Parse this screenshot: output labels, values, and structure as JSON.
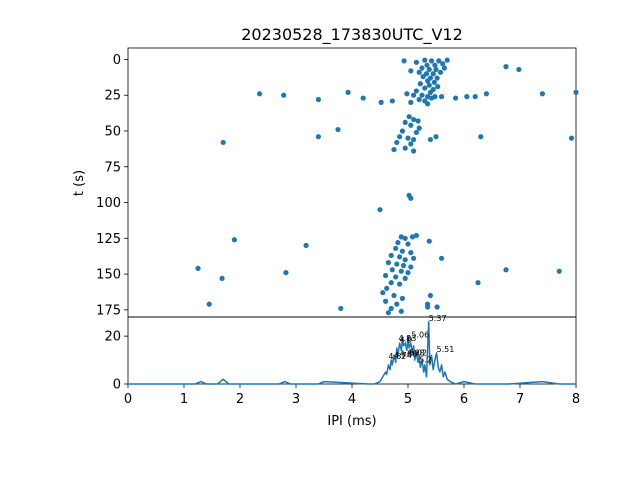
{
  "chart_data": [
    {
      "type": "scatter",
      "title": "20230528_173830UTC_V12",
      "xlabel": "",
      "ylabel": "t (s)",
      "xlim": [
        0,
        8
      ],
      "ylim": [
        180,
        -8
      ],
      "y_inverted": true,
      "yticks": [
        0,
        25,
        50,
        75,
        100,
        125,
        150,
        175
      ],
      "color": "#1f77b4",
      "points": [
        [
          4.93,
          1
        ],
        [
          5.15,
          2
        ],
        [
          5.3,
          0.5
        ],
        [
          5.42,
          1
        ],
        [
          5.55,
          1
        ],
        [
          5.7,
          0.5
        ],
        [
          5.34,
          4
        ],
        [
          5.48,
          4
        ],
        [
          5.62,
          3
        ],
        [
          5.25,
          6
        ],
        [
          5.38,
          7
        ],
        [
          5.5,
          7
        ],
        [
          5.65,
          6
        ],
        [
          5.05,
          8
        ],
        [
          5.2,
          9
        ],
        [
          5.33,
          10
        ],
        [
          5.45,
          10
        ],
        [
          5.58,
          9
        ],
        [
          5.27,
          12
        ],
        [
          5.4,
          13
        ],
        [
          5.52,
          13
        ],
        [
          5.35,
          15
        ],
        [
          5.47,
          16
        ],
        [
          5.22,
          17
        ],
        [
          5.38,
          18
        ],
        [
          5.53,
          19
        ],
        [
          5.3,
          20
        ],
        [
          5.45,
          21
        ],
        [
          5.15,
          22
        ],
        [
          5.4,
          23
        ],
        [
          5.25,
          25
        ],
        [
          5.35,
          26
        ],
        [
          5.1,
          25
        ],
        [
          5.2,
          28
        ],
        [
          5.3,
          29
        ],
        [
          5.05,
          30
        ],
        [
          5.35,
          31
        ],
        [
          5.42,
          27
        ],
        [
          5.6,
          26
        ],
        [
          6.75,
          5
        ],
        [
          6.98,
          7
        ],
        [
          2.35,
          24
        ],
        [
          2.78,
          25
        ],
        [
          3.4,
          28
        ],
        [
          3.93,
          23
        ],
        [
          4.2,
          27
        ],
        [
          4.52,
          30
        ],
        [
          4.72,
          29
        ],
        [
          4.98,
          24
        ],
        [
          5.48,
          26
        ],
        [
          5.85,
          27
        ],
        [
          6.05,
          26
        ],
        [
          6.2,
          26
        ],
        [
          6.4,
          24
        ],
        [
          7.4,
          24
        ],
        [
          8.0,
          23
        ],
        [
          5.02,
          40
        ],
        [
          5.1,
          42
        ],
        [
          4.95,
          44
        ],
        [
          5.18,
          43
        ],
        [
          5.05,
          46
        ],
        [
          5.2,
          48
        ],
        [
          4.9,
          50
        ],
        [
          5.15,
          51
        ],
        [
          4.85,
          54
        ],
        [
          5.0,
          55
        ],
        [
          5.1,
          56
        ],
        [
          4.8,
          58
        ],
        [
          5.05,
          59
        ],
        [
          4.95,
          62
        ],
        [
          5.1,
          64
        ],
        [
          5.5,
          54
        ],
        [
          5.4,
          56
        ],
        [
          4.75,
          63
        ],
        [
          3.4,
          54
        ],
        [
          3.75,
          49
        ],
        [
          1.7,
          58
        ],
        [
          6.3,
          54
        ],
        [
          7.92,
          55
        ],
        [
          5.02,
          95
        ],
        [
          5.05,
          97
        ],
        [
          4.5,
          105
        ],
        [
          4.88,
          124
        ],
        [
          4.95,
          125
        ],
        [
          5.08,
          124
        ],
        [
          5.15,
          123
        ],
        [
          4.82,
          128
        ],
        [
          5.0,
          129
        ],
        [
          4.78,
          132
        ],
        [
          4.9,
          134
        ],
        [
          5.05,
          135
        ],
        [
          4.7,
          137
        ],
        [
          4.85,
          138
        ],
        [
          4.95,
          140
        ],
        [
          5.1,
          139
        ],
        [
          4.65,
          142
        ],
        [
          4.8,
          143
        ],
        [
          4.92,
          144
        ],
        [
          5.05,
          145
        ],
        [
          4.72,
          147
        ],
        [
          4.88,
          148
        ],
        [
          5.0,
          149
        ],
        [
          4.6,
          151
        ],
        [
          4.78,
          152
        ],
        [
          4.95,
          153
        ],
        [
          4.7,
          156
        ],
        [
          4.85,
          157
        ],
        [
          4.62,
          160
        ],
        [
          4.55,
          163
        ],
        [
          4.75,
          165
        ],
        [
          4.9,
          167
        ],
        [
          4.6,
          169
        ],
        [
          4.8,
          171
        ],
        [
          4.7,
          174
        ],
        [
          4.88,
          176
        ],
        [
          4.65,
          177
        ],
        [
          5.38,
          127
        ],
        [
          5.6,
          139
        ],
        [
          5.4,
          165
        ],
        [
          5.35,
          171
        ],
        [
          5.35,
          173
        ],
        [
          5.52,
          173
        ],
        [
          6.25,
          156
        ],
        [
          6.75,
          147
        ],
        [
          7.7,
          148
        ],
        [
          1.25,
          146
        ],
        [
          1.68,
          153
        ],
        [
          1.9,
          126
        ],
        [
          2.82,
          149
        ],
        [
          3.18,
          130
        ],
        [
          1.45,
          171
        ],
        [
          3.8,
          174
        ]
      ]
    },
    {
      "type": "line",
      "xlabel": "IPI (ms)",
      "ylabel": "",
      "xlim": [
        0,
        8
      ],
      "ylim": [
        0,
        28
      ],
      "xticks": [
        0,
        1,
        2,
        3,
        4,
        5,
        6,
        7,
        8
      ],
      "yticks": [
        0,
        20
      ],
      "color": "#1f77b4",
      "x": [
        0,
        1.2,
        1.3,
        1.4,
        1.6,
        1.7,
        1.8,
        1.9,
        2.7,
        2.8,
        2.9,
        3.4,
        3.5,
        4.3,
        4.4,
        4.5,
        4.55,
        4.6,
        4.62,
        4.65,
        4.68,
        4.7,
        4.72,
        4.75,
        4.78,
        4.8,
        4.82,
        4.85,
        4.88,
        4.9,
        4.92,
        4.95,
        4.98,
        5.0,
        5.02,
        5.05,
        5.08,
        5.1,
        5.12,
        5.15,
        5.18,
        5.2,
        5.22,
        5.25,
        5.28,
        5.3,
        5.33,
        5.35,
        5.37,
        5.39,
        5.42,
        5.45,
        5.48,
        5.51,
        5.54,
        5.57,
        5.6,
        5.63,
        5.66,
        5.7,
        5.75,
        5.85,
        6.0,
        6.2,
        6.8,
        7.4,
        7.7,
        8.0
      ],
      "y": [
        0,
        0,
        1,
        0,
        0,
        2,
        0,
        0,
        0,
        1,
        0,
        0,
        1,
        0,
        0,
        1,
        3,
        5,
        4,
        8,
        6,
        10,
        8,
        12,
        9,
        15,
        12,
        17,
        14,
        19,
        16,
        17,
        14,
        20,
        15,
        17,
        13,
        16,
        10,
        13,
        9,
        12,
        7,
        10,
        5,
        8,
        3,
        15,
        26,
        8,
        12,
        6,
        10,
        13,
        7,
        5,
        8,
        3,
        5,
        2,
        1,
        0,
        1,
        0,
        0,
        1,
        0,
        0
      ],
      "peak_labels": [
        {
          "x": 5.37,
          "y": 26,
          "text": "5.37"
        },
        {
          "x": 5.06,
          "y": 19,
          "text": "5.06"
        },
        {
          "x": 4.83,
          "y": 17.5,
          "text": "4.83"
        },
        {
          "x": 4.85,
          "y": 17,
          "text": "4.9"
        },
        {
          "x": 5.51,
          "y": 13,
          "text": "5.51"
        },
        {
          "x": 4.98,
          "y": 11.5,
          "text": "4.98"
        },
        {
          "x": 5.02,
          "y": 11.5,
          "text": "5.02"
        },
        {
          "x": 4.85,
          "y": 11,
          "text": "4.88"
        },
        {
          "x": 4.75,
          "y": 10.5,
          "text": "4.74"
        },
        {
          "x": 4.65,
          "y": 10,
          "text": "4.62"
        },
        {
          "x": 5.2,
          "y": 8.5,
          "text": "5.2"
        }
      ]
    }
  ]
}
